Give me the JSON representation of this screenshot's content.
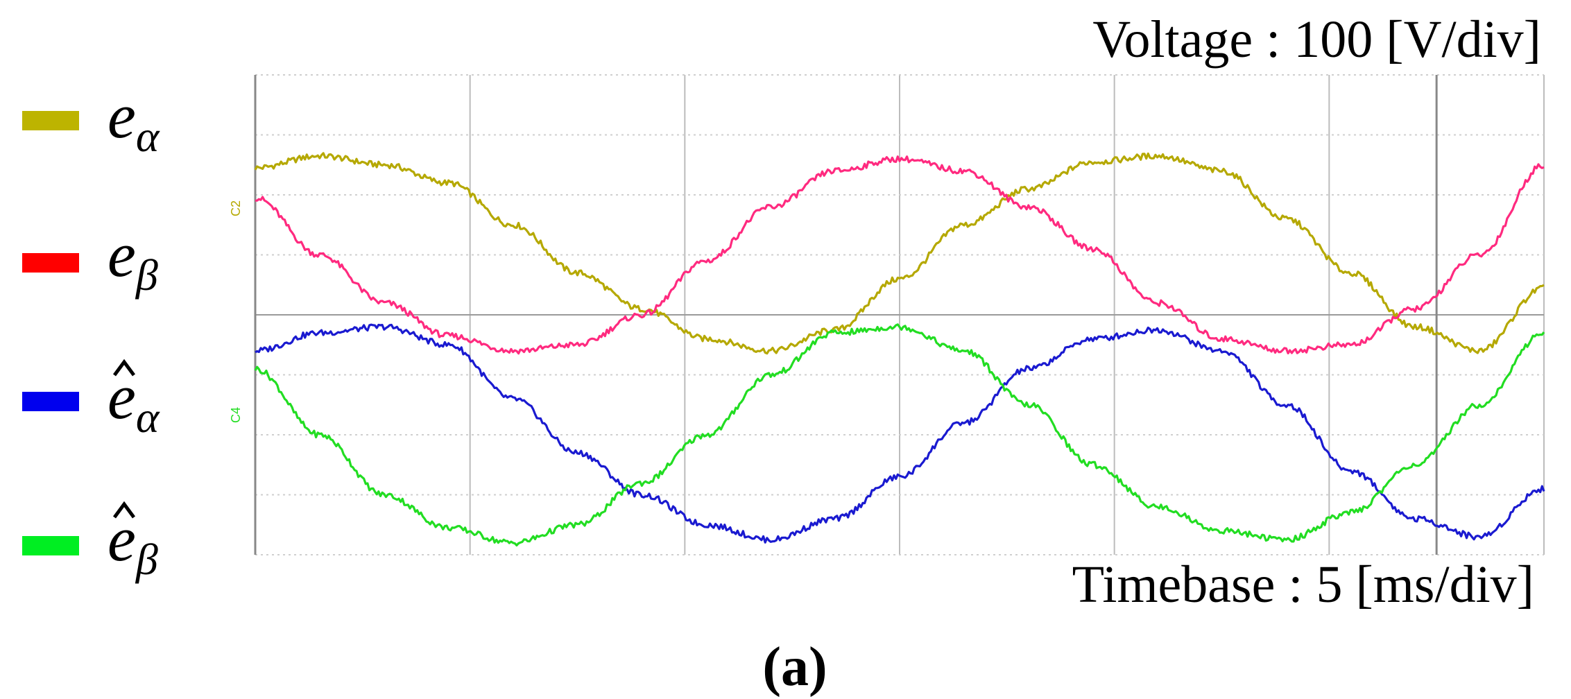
{
  "voltage_label": "Voltage : 100 [V/div]",
  "timebase_label": "Timebase : 5 [ms/div]",
  "caption": "(a)",
  "channel_markers": [
    "C2",
    "C4"
  ],
  "legend": [
    {
      "color": "#bdb400",
      "base": "e",
      "sub": "α",
      "hat": false
    },
    {
      "color": "#ff0000",
      "base": "e",
      "sub": "β",
      "hat": false
    },
    {
      "color": "#0000ee",
      "base": "e",
      "sub": "α",
      "hat": true
    },
    {
      "color": "#00ee22",
      "base": "e",
      "sub": "β",
      "hat": true
    }
  ],
  "chart_data": {
    "type": "line",
    "x_unit": "ms",
    "y_unit": "V",
    "xlim": [
      0,
      30
    ],
    "ylim": [
      -400,
      400
    ],
    "x_divisions": 6,
    "y_divisions": 8,
    "x_per_div": 5,
    "y_per_div": 100,
    "grid": true,
    "legend_position": "left",
    "series": [
      {
        "name": "e_α",
        "color": "#b5a800",
        "x": [
          0,
          1.5,
          3,
          4.5,
          6,
          7.5,
          9,
          10.5,
          12,
          13.5,
          15,
          16.5,
          18,
          19.5,
          21,
          22.5,
          24,
          25.5,
          27,
          28.5,
          30
        ],
        "y": [
          245,
          265,
          250,
          220,
          150,
          70,
          10,
          -40,
          -60,
          -25,
          60,
          150,
          210,
          255,
          265,
          240,
          160,
          70,
          -20,
          -60,
          45
        ]
      },
      {
        "name": "e_β",
        "color": "#ff2a7f",
        "x": [
          0,
          1.5,
          3,
          4.5,
          6,
          7.5,
          9,
          10.5,
          12,
          13.5,
          15,
          16.5,
          18,
          19.5,
          21,
          22.5,
          24,
          25.5,
          27,
          28.5,
          30
        ],
        "y": [
          195,
          100,
          20,
          -35,
          -60,
          -50,
          0,
          90,
          180,
          240,
          260,
          240,
          180,
          110,
          20,
          -40,
          -60,
          -50,
          10,
          100,
          250
        ]
      },
      {
        "name": "ê_α",
        "color": "#1a1ad0",
        "x": [
          0,
          1.5,
          3,
          4.5,
          6,
          7.5,
          9,
          10.5,
          12,
          13.5,
          15,
          16.5,
          18,
          19.5,
          21,
          22.5,
          24,
          25.5,
          27,
          28.5,
          30
        ],
        "y": [
          -60,
          -30,
          -20,
          -50,
          -140,
          -230,
          -300,
          -350,
          -375,
          -340,
          -270,
          -180,
          -90,
          -40,
          -25,
          -60,
          -150,
          -260,
          -340,
          -370,
          -290
        ]
      },
      {
        "name": "ê_β",
        "color": "#22dd22",
        "x": [
          0,
          1.5,
          3,
          4.5,
          6,
          7.5,
          9,
          10.5,
          12,
          13.5,
          15,
          16.5,
          18,
          19.5,
          21,
          22.5,
          24,
          25.5,
          27,
          28.5,
          30
        ],
        "y": [
          -90,
          -200,
          -300,
          -355,
          -380,
          -350,
          -280,
          -200,
          -100,
          -30,
          -20,
          -60,
          -150,
          -250,
          -320,
          -360,
          -375,
          -330,
          -250,
          -150,
          -30
        ]
      }
    ]
  }
}
